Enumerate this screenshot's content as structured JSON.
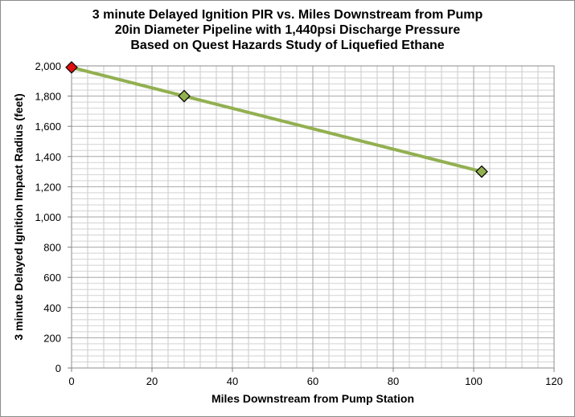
{
  "chart_data": {
    "type": "line",
    "title_lines": [
      "3 minute Delayed Ignition PIR vs. Miles Downstream from Pump",
      "20in Diameter Pipeline with 1,440psi Discharge Pressure",
      "Based on Quest Hazards Study of Liquefied Ethane"
    ],
    "xlabel": "Miles Downstream from Pump Station",
    "ylabel": "3 minute Delayed Ignition Impact Radius (feet)",
    "xlim": [
      0,
      120
    ],
    "ylim": [
      0,
      2000
    ],
    "x_ticks": [
      0,
      20,
      40,
      60,
      80,
      100,
      120
    ],
    "y_ticks": [
      0,
      200,
      400,
      600,
      800,
      1000,
      1200,
      1400,
      1600,
      1800,
      2000
    ],
    "x_tick_labels": [
      "0",
      "20",
      "40",
      "60",
      "80",
      "100",
      "120"
    ],
    "y_tick_labels": [
      "0",
      "200",
      "400",
      "600",
      "800",
      "1,000",
      "1,200",
      "1,400",
      "1,600",
      "1,800",
      "2,000"
    ],
    "grid": true,
    "legend": "none",
    "series": [
      {
        "x": [
          0,
          28,
          102
        ],
        "y": [
          1990,
          1800,
          1300
        ],
        "line_color": "#92b050",
        "marker": "diamond",
        "marker_colors": [
          "#e01010",
          "#92b050",
          "#92b050"
        ]
      }
    ]
  }
}
